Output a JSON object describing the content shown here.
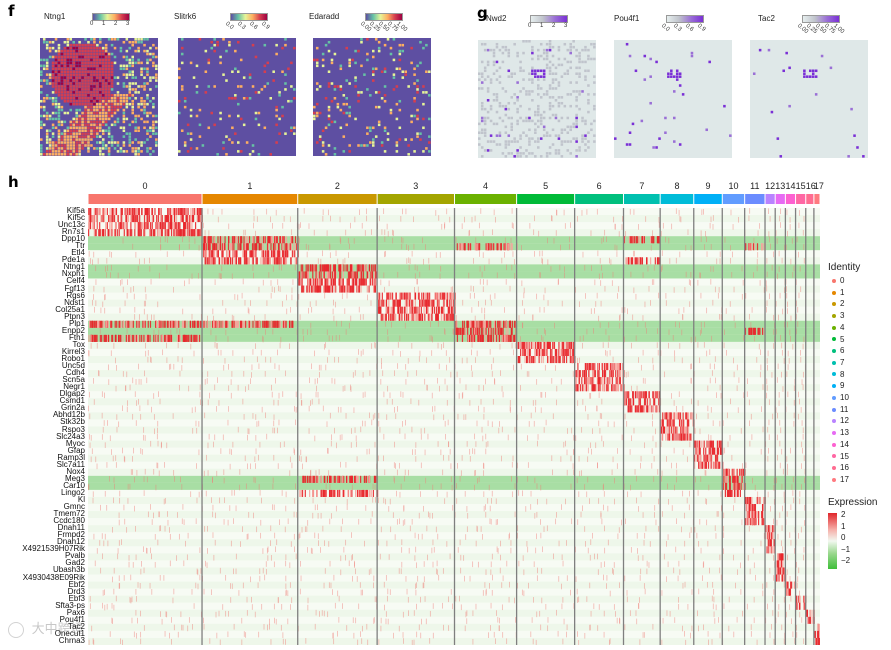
{
  "panels": {
    "f": {
      "letter": "f"
    },
    "g": {
      "letter": "g"
    },
    "h": {
      "letter": "h"
    }
  },
  "spatial_maps": [
    {
      "gene": "Ntng1",
      "ticks": [
        "0",
        "1",
        "2",
        "3"
      ],
      "palette": "spectral",
      "colors": [
        "#5e4fa2",
        "#66c2a5",
        "#e6f598",
        "#fdae61",
        "#d53e4f",
        "#9e0142"
      ],
      "density": 0.75
    },
    {
      "gene": "Slitrk6",
      "ticks": [
        "0.0",
        "0.3",
        "0.6",
        "0.9"
      ],
      "palette": "spectral",
      "colors": [
        "#5e4fa2",
        "#66c2a5",
        "#e6f598",
        "#fdae61",
        "#d53e4f",
        "#9e0142"
      ],
      "density": 0.1
    },
    {
      "gene": "Edaradd",
      "ticks": [
        "0.00",
        "0.25",
        "0.50",
        "0.75",
        "1.00"
      ],
      "palette": "spectral",
      "colors": [
        "#5e4fa2",
        "#66c2a5",
        "#e6f598",
        "#fdae61",
        "#d53e4f",
        "#9e0142"
      ],
      "density": 0.12
    },
    {
      "gene": "Nwd2",
      "ticks": [
        "0",
        "1",
        "2",
        "3"
      ],
      "palette": "grey-purple",
      "colors": [
        "#e6eeee",
        "#c0c4cc",
        "#9a6fd6",
        "#7a2fd6"
      ],
      "density": 0.02
    },
    {
      "gene": "Pou4f1",
      "ticks": [
        "0.0",
        "0.3",
        "0.6",
        "0.9"
      ],
      "palette": "grey-purple",
      "colors": [
        "#e6eeee",
        "#c0c4cc",
        "#9a6fd6",
        "#7a2fd6"
      ],
      "density": 0.015
    },
    {
      "gene": "Tac2",
      "ticks": [
        "0.00",
        "0.25",
        "0.50",
        "0.75",
        "1.00"
      ],
      "palette": "grey-purple",
      "colors": [
        "#e6eeee",
        "#c0c4cc",
        "#9a6fd6",
        "#7a2fd6"
      ],
      "density": 0.01
    }
  ],
  "chart_data": {
    "type": "heatmap",
    "title": "",
    "clusters": [
      "0",
      "1",
      "2",
      "3",
      "4",
      "5",
      "6",
      "7",
      "8",
      "9",
      "10",
      "11",
      "12",
      "13",
      "14",
      "15",
      "16",
      "17"
    ],
    "cluster_widths": [
      112,
      94,
      78,
      76,
      61,
      57,
      48,
      36,
      33,
      28,
      22,
      20,
      10,
      10,
      10,
      10,
      8,
      6
    ],
    "cluster_colors": [
      "#f8766d",
      "#e58700",
      "#c99800",
      "#a3a500",
      "#6bb100",
      "#00ba38",
      "#00bf7d",
      "#00c0af",
      "#00bcd8",
      "#00b0f6",
      "#619cff",
      "#6b8cff",
      "#b983ff",
      "#e76bf3",
      "#fd61d1",
      "#ff67a4",
      "#ff6c91",
      "#ff7a80"
    ],
    "genes": [
      "Kif5a",
      "Kif5c",
      "Unc13c",
      "Rn7s1",
      "Dpp10",
      "Ttr",
      "Etl4",
      "Pde1a",
      "Ntng1",
      "Nxph1",
      "Celf4",
      "Fgf13",
      "Rgs6",
      "Ndst1",
      "Col25a1",
      "Ptpn3",
      "Plp1",
      "Enpp2",
      "Fth1",
      "Tox",
      "Kirrel3",
      "Robo1",
      "Unc5d",
      "Cdh4",
      "Scn5a",
      "Negr1",
      "Dlgap2",
      "Csmd1",
      "Grin2a",
      "Abhd12b",
      "Stk32b",
      "Rspo3",
      "Slc24a3",
      "Myoc",
      "Gfap",
      "Ramp3l",
      "Slc7a11",
      "Nox4",
      "Meg3",
      "Car10",
      "Lingo2",
      "Kl",
      "Gmnc",
      "Tmem72",
      "Ccdc180",
      "Dnah11",
      "Frmpd2",
      "Dnah12",
      "X4921539H07Rik",
      "Pvalb",
      "Gad2",
      "Ubash3b",
      "X4930438E09Rik",
      "Ebf2",
      "Drd3",
      "Ebf3",
      "Sfta3-ps",
      "Pax6",
      "Pou4f1",
      "Tac2",
      "Onecut1",
      "Chrna3"
    ],
    "gene_markers": [
      [
        0
      ],
      [
        0
      ],
      [
        0
      ],
      [
        0
      ],
      [
        1,
        7
      ],
      [
        1,
        4,
        11
      ],
      [
        1
      ],
      [
        1,
        7
      ],
      [
        2
      ],
      [
        2
      ],
      [
        2
      ],
      [
        2
      ],
      [
        3
      ],
      [
        3
      ],
      [
        3
      ],
      [
        3
      ],
      [
        0,
        1,
        4
      ],
      [
        4,
        11
      ],
      [
        0,
        4
      ],
      [
        5
      ],
      [
        5
      ],
      [
        5
      ],
      [
        6
      ],
      [
        6
      ],
      [
        6
      ],
      [
        6
      ],
      [
        7
      ],
      [
        7
      ],
      [
        7
      ],
      [
        8
      ],
      [
        8
      ],
      [
        8
      ],
      [
        8
      ],
      [
        9
      ],
      [
        9
      ],
      [
        9
      ],
      [
        9
      ],
      [
        10
      ],
      [
        2,
        10
      ],
      [
        10
      ],
      [
        2,
        10
      ],
      [
        11
      ],
      [
        11
      ],
      [
        11
      ],
      [
        11
      ],
      [
        12
      ],
      [
        12
      ],
      [
        12
      ],
      [
        12
      ],
      [
        13
      ],
      [
        13
      ],
      [
        13
      ],
      [
        13
      ],
      [
        14
      ],
      [
        14
      ],
      [
        15
      ],
      [
        15
      ],
      [
        16
      ],
      [
        16
      ],
      [
        17
      ],
      [
        17
      ],
      [
        17
      ]
    ],
    "green_rows": [
      4,
      5,
      8,
      9,
      16,
      17,
      18,
      38,
      39
    ],
    "expression_scale": {
      "label": "Expression",
      "ticks": [
        "2",
        "1",
        "0",
        "−1",
        "−2"
      ],
      "min": -2,
      "max": 2
    },
    "legend": {
      "title": "Identity"
    }
  },
  "watermark": "大中跨境"
}
